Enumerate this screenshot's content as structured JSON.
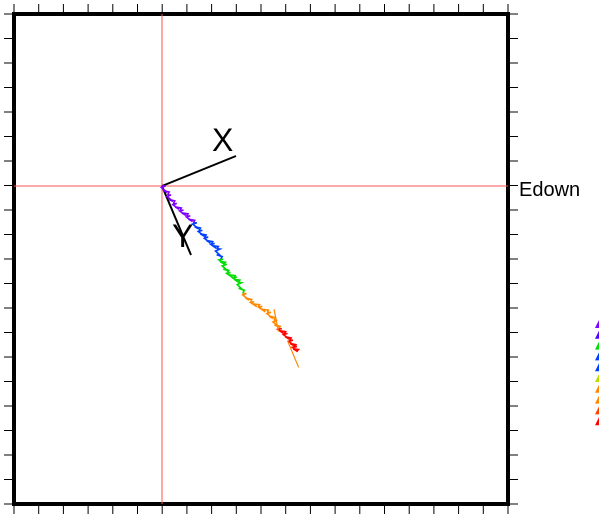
{
  "chart_data": {
    "type": "line",
    "title": "",
    "xlabel": "",
    "ylabel": "",
    "grid": false,
    "axes": {
      "x_label": "X",
      "y_label": "Y",
      "right_label": "Edown"
    },
    "crosshair_color": "#ff5050",
    "track_colors": [
      "#8000ff",
      "#0040ff",
      "#00dd00",
      "#ff8800",
      "#ff0000"
    ],
    "trajectory": [
      {
        "x": 0,
        "y": 0
      },
      {
        "x": 0.05,
        "y": -0.08
      },
      {
        "x": 0.1,
        "y": -0.16
      },
      {
        "x": 0.16,
        "y": -0.22
      },
      {
        "x": 0.22,
        "y": -0.27
      },
      {
        "x": 0.28,
        "y": -0.33
      },
      {
        "x": 0.33,
        "y": -0.4
      },
      {
        "x": 0.38,
        "y": -0.46
      },
      {
        "x": 0.44,
        "y": -0.52
      },
      {
        "x": 0.49,
        "y": -0.56
      },
      {
        "x": 0.52,
        "y": -0.66
      },
      {
        "x": 0.55,
        "y": -0.7
      },
      {
        "x": 0.58,
        "y": -0.78
      },
      {
        "x": 0.64,
        "y": -0.82
      },
      {
        "x": 0.68,
        "y": -0.86
      },
      {
        "x": 0.72,
        "y": -0.96
      },
      {
        "x": 0.79,
        "y": -1.04
      },
      {
        "x": 0.86,
        "y": -1.08
      },
      {
        "x": 0.94,
        "y": -1.13
      },
      {
        "x": 1.0,
        "y": -1.2
      },
      {
        "x": 1.04,
        "y": -1.28
      },
      {
        "x": 1.09,
        "y": -1.32
      },
      {
        "x": 1.14,
        "y": -1.38
      },
      {
        "x": 1.18,
        "y": -1.44
      },
      {
        "x": 1.2,
        "y": -1.48
      }
    ],
    "spurs": [
      [
        {
          "x": 1.0,
          "y": -1.1
        },
        {
          "x": 1.04,
          "y": -1.3
        }
      ],
      [
        {
          "x": 1.12,
          "y": -1.38
        },
        {
          "x": 1.22,
          "y": -1.62
        }
      ]
    ]
  }
}
